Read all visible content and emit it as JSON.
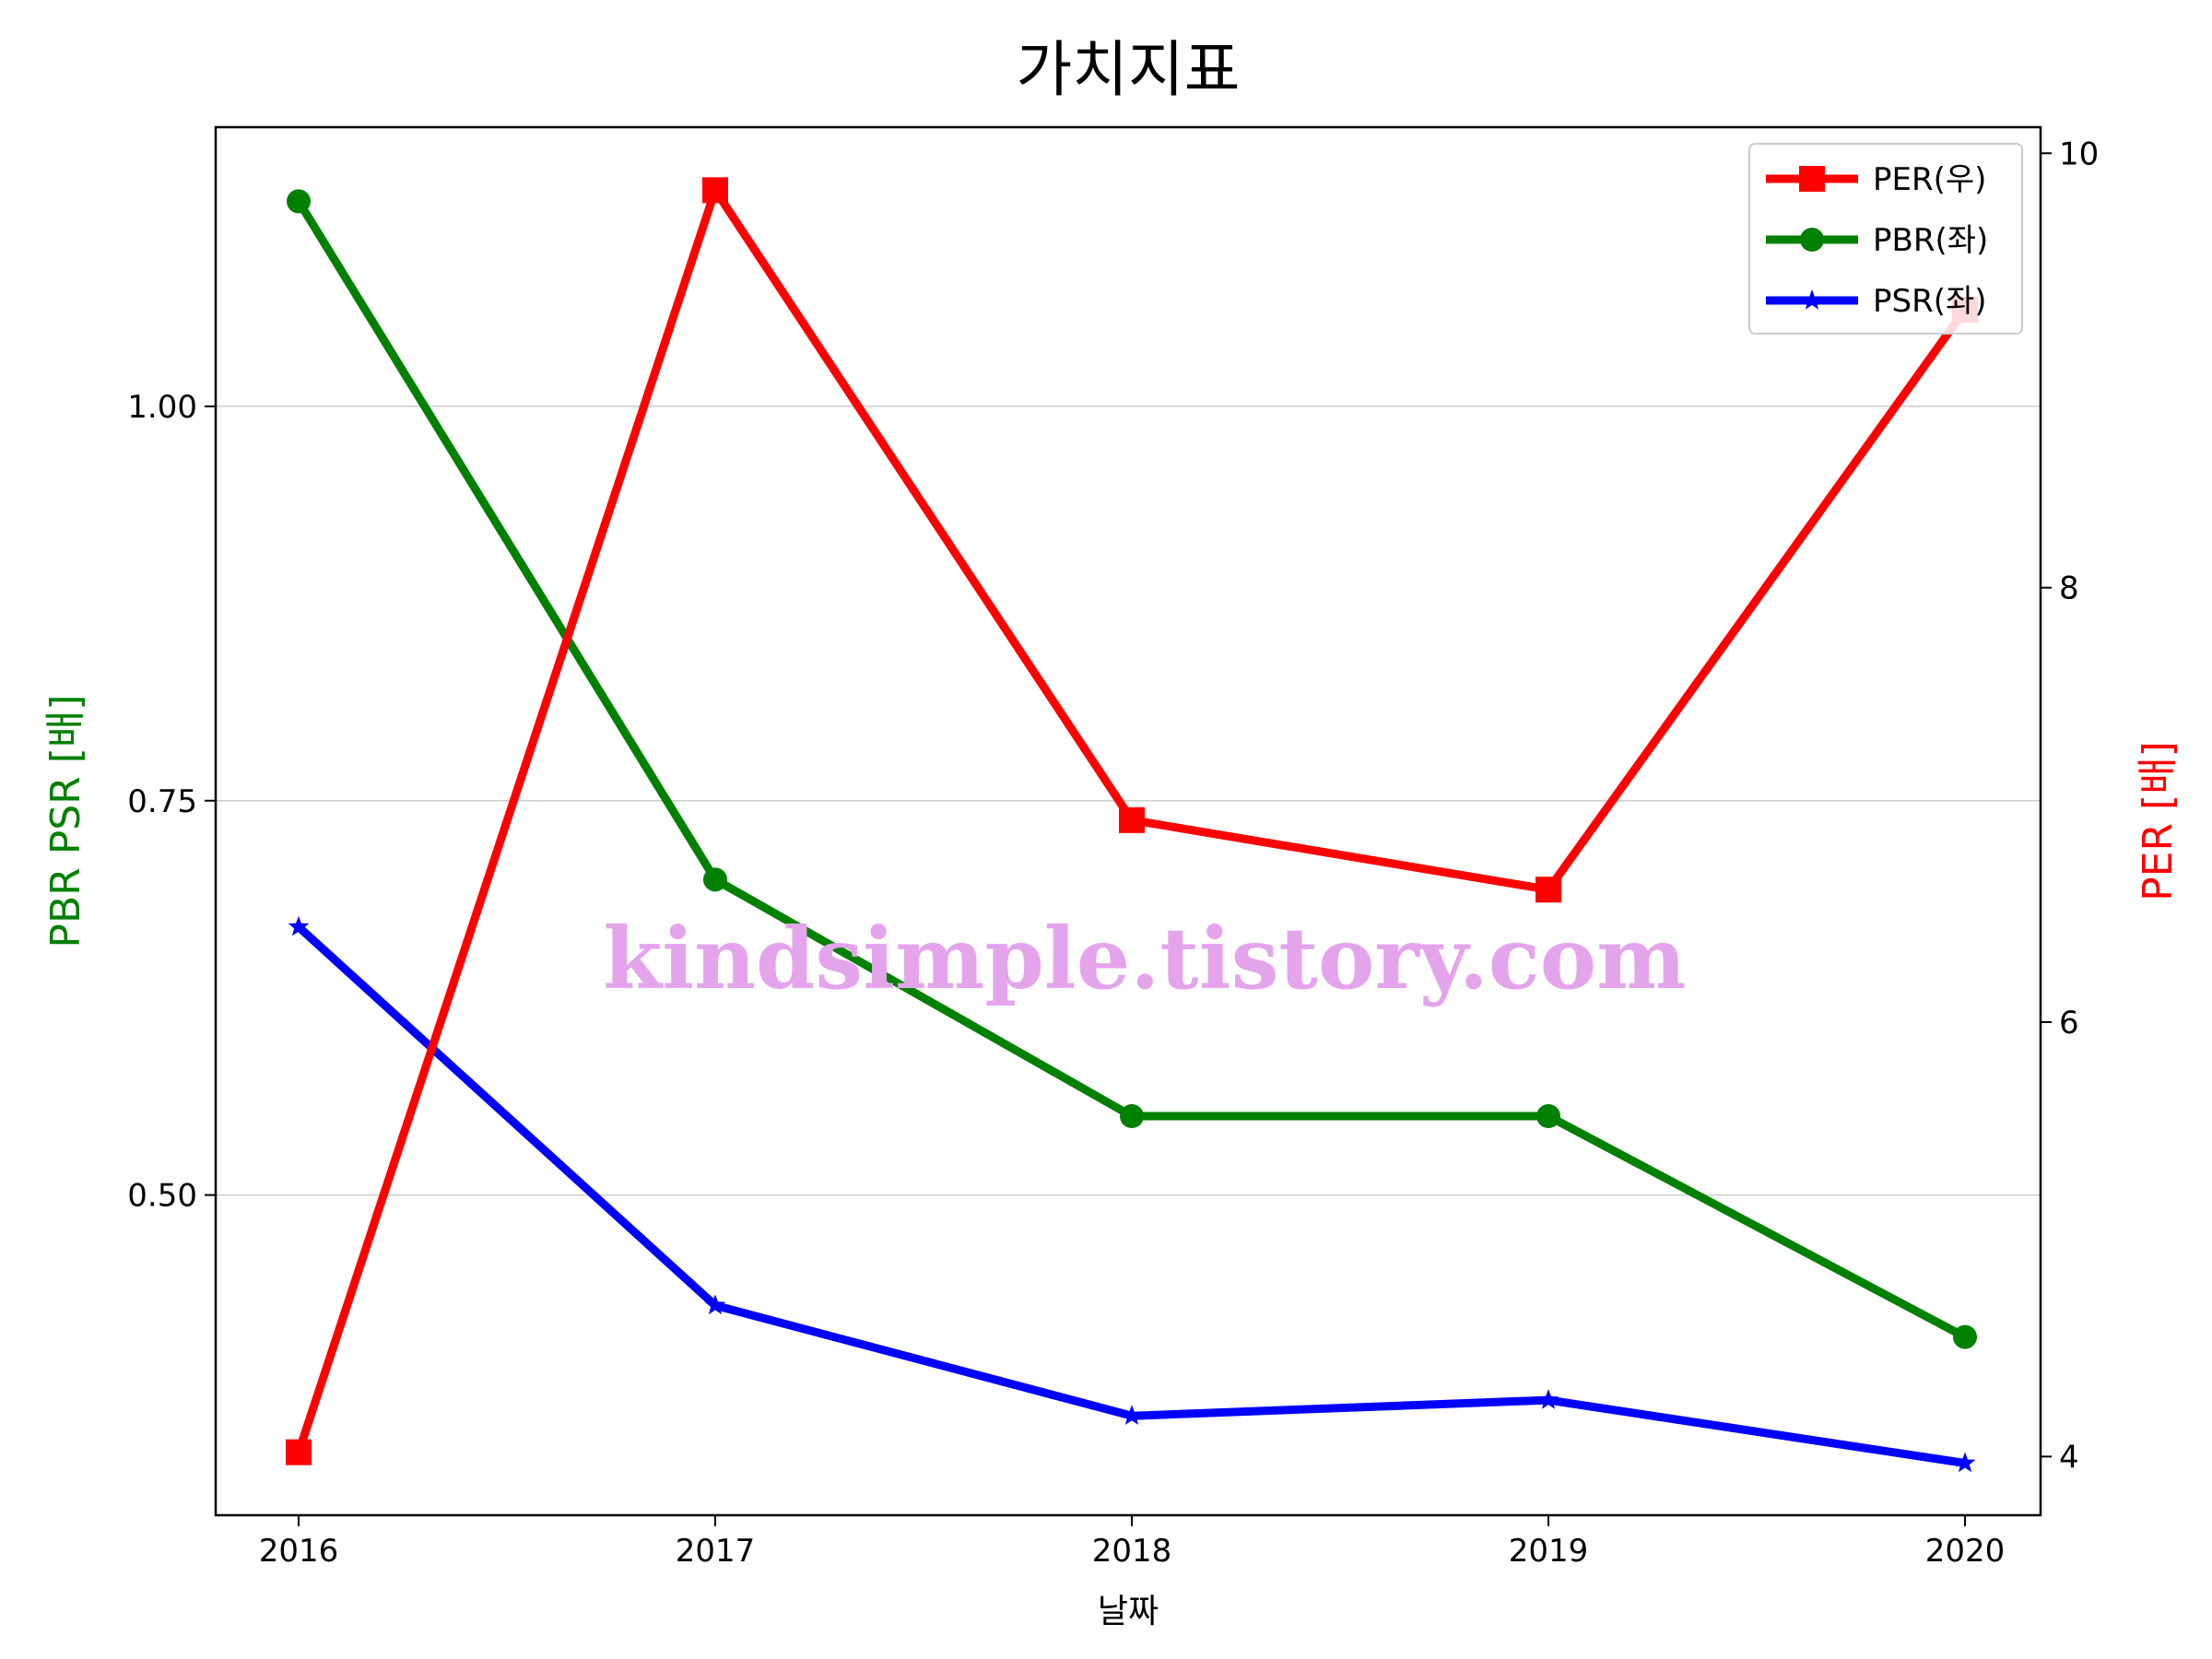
{
  "chart_data": {
    "type": "line",
    "title": "가치지표",
    "xlabel": "날짜",
    "ylabel_left": "PBR PSR [배]",
    "ylabel_right": "PER [배]",
    "categories": [
      "2016",
      "2017",
      "2018",
      "2019",
      "2020"
    ],
    "y_left": {
      "range": [
        0.297,
        1.177
      ],
      "ticks": [
        0.5,
        0.75,
        1.0
      ],
      "tick_labels": [
        "0.50",
        "0.75",
        "1.00"
      ],
      "grid": true
    },
    "y_right": {
      "range": [
        3.73,
        10.12
      ],
      "ticks": [
        4,
        6,
        8,
        10
      ],
      "tick_labels": [
        "4",
        "6",
        "8",
        "10"
      ]
    },
    "series": [
      {
        "name": "PER(우)",
        "axis": "right",
        "color": "#ff0000",
        "marker": "square",
        "values": [
          4.02,
          9.83,
          6.93,
          6.61,
          9.28
        ]
      },
      {
        "name": "PBR(좌)",
        "axis": "left",
        "color": "#008000",
        "marker": "circle",
        "values": [
          1.13,
          0.7,
          0.55,
          0.55,
          0.41
        ]
      },
      {
        "name": "PSR(좌)",
        "axis": "left",
        "color": "#0000ff",
        "marker": "star",
        "values": [
          0.67,
          0.43,
          0.36,
          0.37,
          0.33
        ]
      }
    ],
    "legend_position": "top-right",
    "watermark": "kindsimple.tistory.com"
  }
}
